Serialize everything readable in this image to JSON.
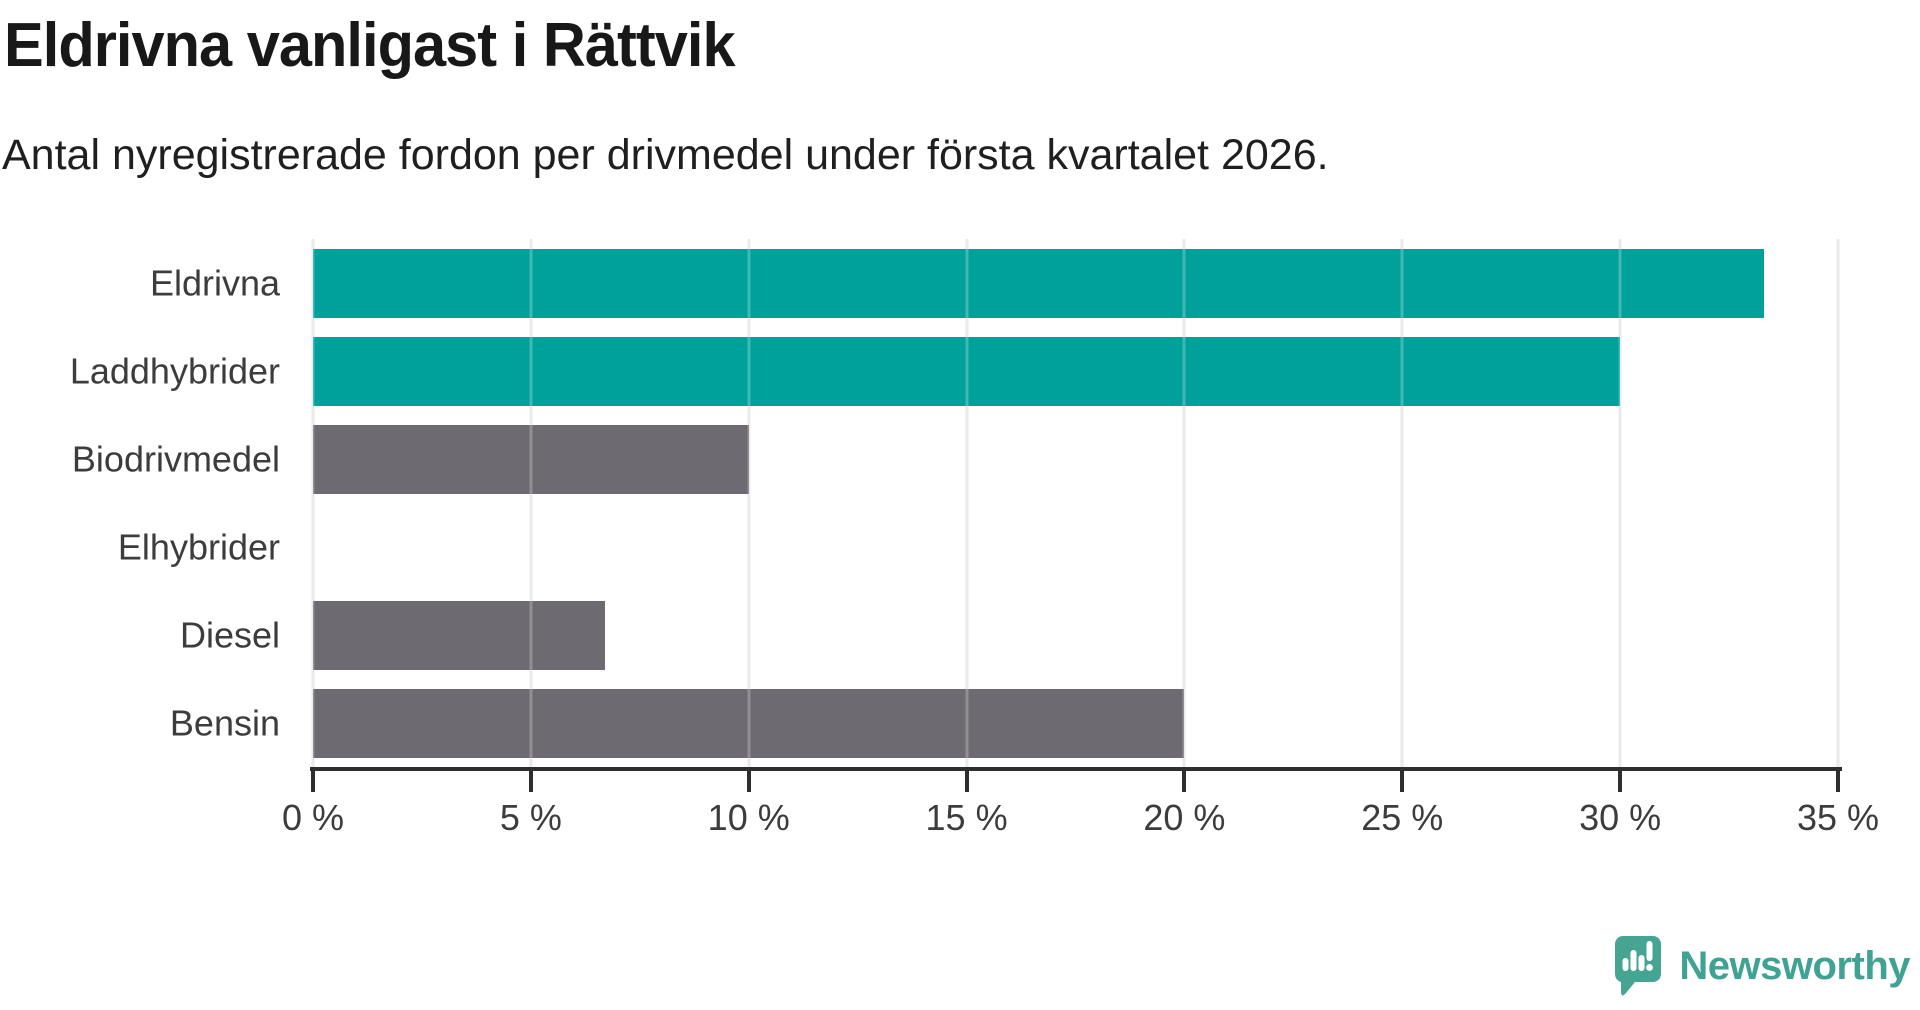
{
  "header": {
    "title": "Eldrivna vanligast i Rättvik",
    "subtitle": "Antal nyregistrerade fordon per drivmedel under första kvartalet 2026."
  },
  "chart_data": {
    "type": "bar",
    "orientation": "horizontal",
    "categories": [
      "Eldrivna",
      "Laddhybrider",
      "Biodrivmedel",
      "Elhybrider",
      "Diesel",
      "Bensin"
    ],
    "values": [
      33.3,
      30,
      10,
      0,
      6.7,
      20
    ],
    "unit": "%",
    "bar_colors": [
      "#00a09b",
      "#00a09b",
      "#6d6a71",
      "#6d6a71",
      "#6d6a71",
      "#6d6a71"
    ],
    "highlight_color": "#00a09b",
    "default_color": "#6d6a71",
    "xlim": [
      0,
      35
    ],
    "x_tick_step": 5,
    "x_tick_labels": [
      "0 %",
      "5 %",
      "10 %",
      "15 %",
      "20 %",
      "25 %",
      "30 %",
      "35 %"
    ],
    "grid": "vertical",
    "gridline_color": "#e3e3e3",
    "axis_color": "#2e2e2e",
    "legend": "none",
    "title": "Eldrivna vanligast i Rättvik",
    "xlabel": "",
    "ylabel": ""
  },
  "branding": {
    "logo_text": "Newsworthy",
    "logo_color": "#3fa292",
    "logo_icon": "speech-bubble-bar-chart-icon",
    "logo_icon_color": "#46a492"
  }
}
